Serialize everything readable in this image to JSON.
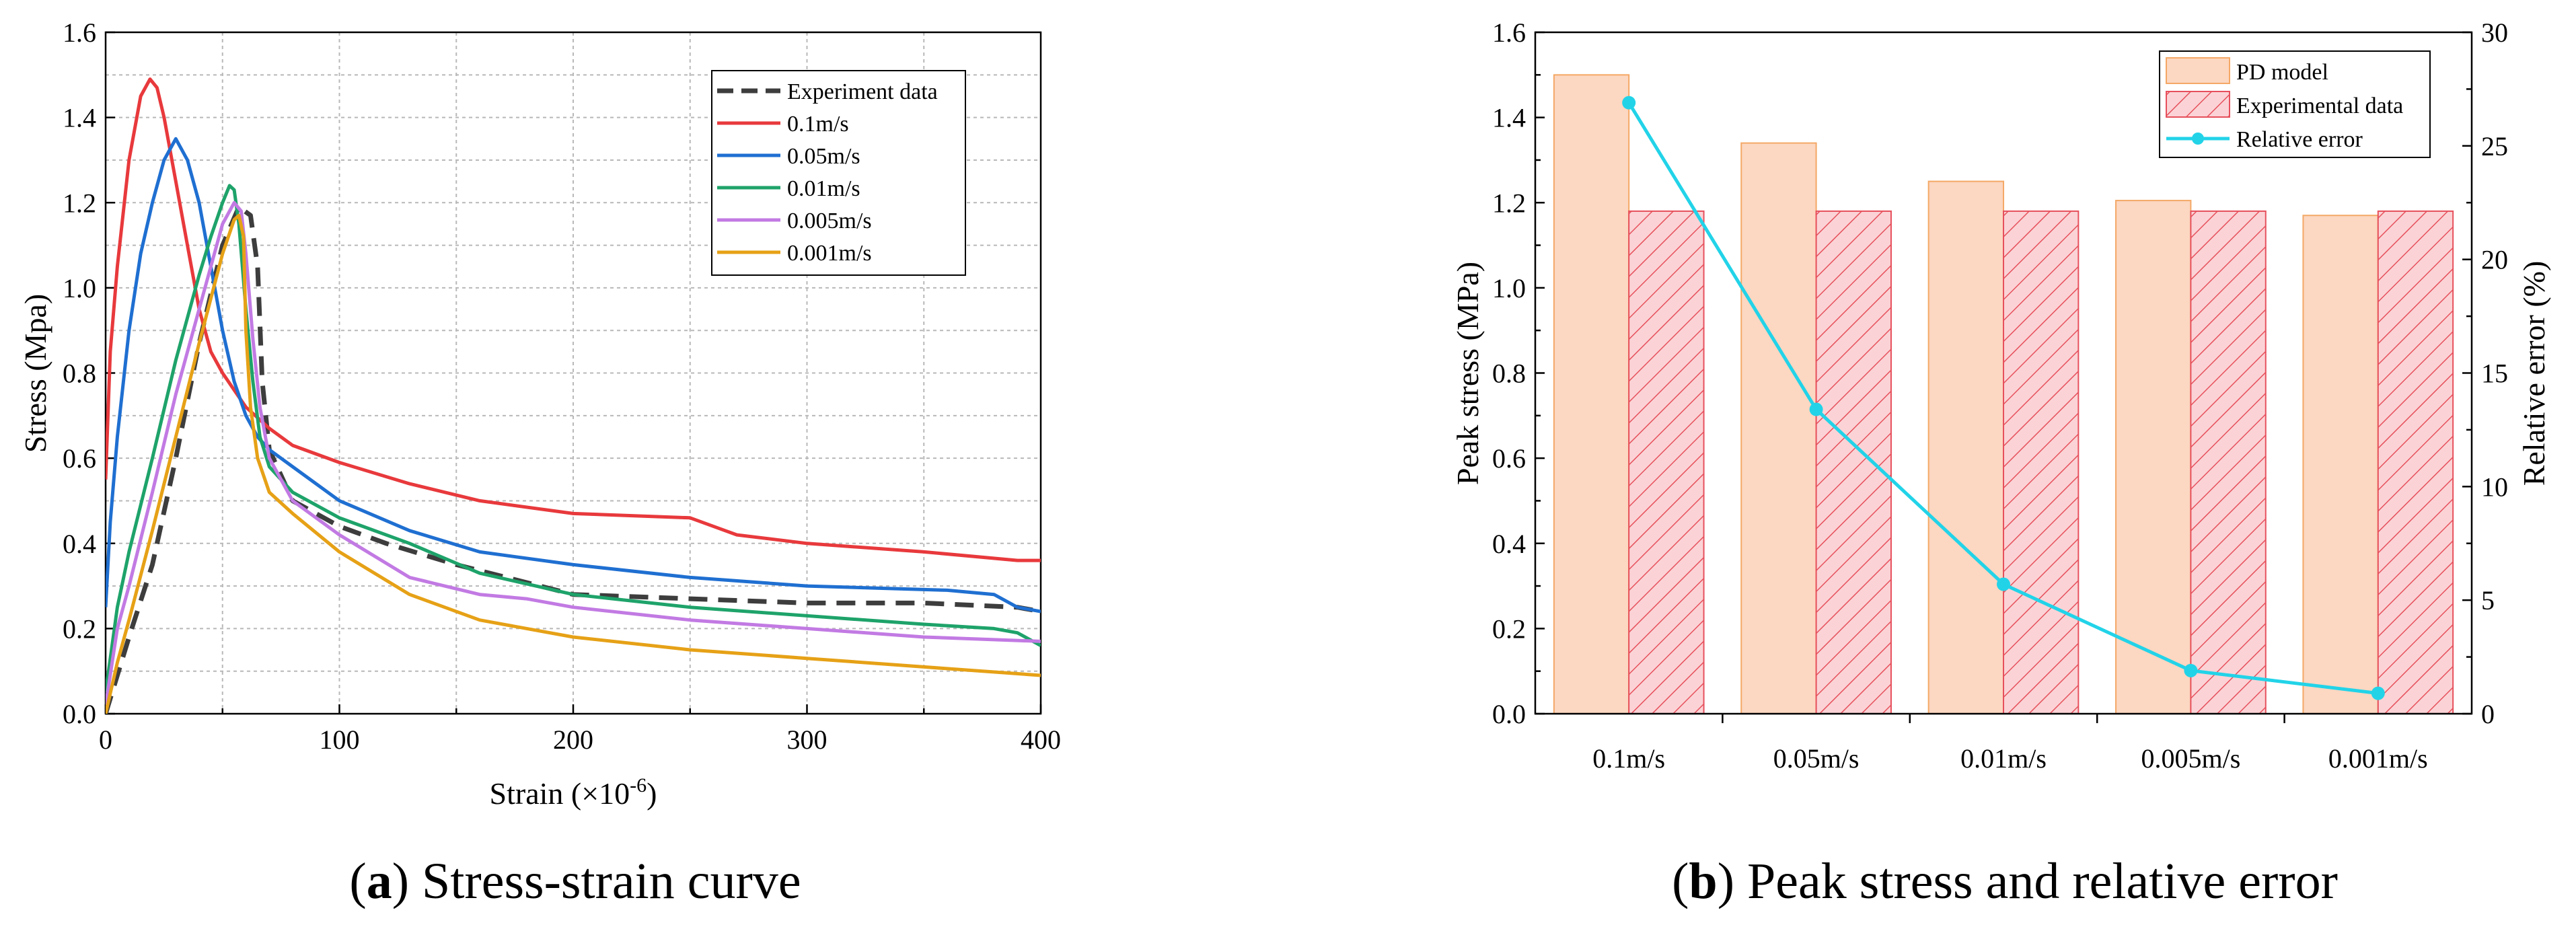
{
  "panels": {
    "a": {
      "caption_letter": "a",
      "caption_text": "Stress-strain curve"
    },
    "b": {
      "caption_letter": "b",
      "caption_text": "Peak stress and relative error"
    }
  },
  "chart_data": [
    {
      "id": "a",
      "type": "line",
      "title": "",
      "xlabel": "Strain (×10",
      "xlabel_sup": "-6",
      "xlabel_end": ")",
      "ylabel": "Stress (Mpa)",
      "xlim": [
        0,
        400
      ],
      "ylim": [
        0,
        1.6
      ],
      "xticks": [
        0,
        100,
        200,
        300,
        400
      ],
      "yticks": [
        0.0,
        0.2,
        0.4,
        0.6,
        0.8,
        1.0,
        1.2,
        1.4,
        1.6
      ],
      "grid": true,
      "legend_position": "top-right",
      "series": [
        {
          "name": "Experiment data",
          "color": "#3d3d3d",
          "dashed": true,
          "x": [
            0,
            10,
            20,
            30,
            40,
            50,
            57,
            62,
            65,
            67,
            70,
            80,
            100,
            120,
            150,
            200,
            250,
            300,
            350,
            390,
            400
          ],
          "y": [
            0,
            0.18,
            0.35,
            0.6,
            0.87,
            1.1,
            1.19,
            1.17,
            1.05,
            0.78,
            0.62,
            0.5,
            0.44,
            0.4,
            0.35,
            0.28,
            0.27,
            0.26,
            0.26,
            0.25,
            0.24
          ]
        },
        {
          "name": "0.1m/s",
          "color": "#e8393c",
          "dashed": false,
          "x": [
            0,
            2,
            5,
            10,
            15,
            19,
            22,
            25,
            30,
            35,
            40,
            45,
            50,
            55,
            60,
            70,
            80,
            100,
            130,
            160,
            200,
            250,
            265,
            270,
            300,
            350,
            390,
            400
          ],
          "y": [
            0.55,
            0.85,
            1.05,
            1.3,
            1.45,
            1.49,
            1.47,
            1.4,
            1.25,
            1.1,
            0.95,
            0.85,
            0.8,
            0.76,
            0.72,
            0.67,
            0.63,
            0.59,
            0.54,
            0.5,
            0.47,
            0.46,
            0.43,
            0.42,
            0.4,
            0.38,
            0.36,
            0.36
          ]
        },
        {
          "name": "0.05m/s",
          "color": "#1f6fd1",
          "dashed": false,
          "x": [
            0,
            2,
            5,
            10,
            15,
            20,
            25,
            30,
            35,
            40,
            45,
            50,
            55,
            60,
            65,
            70,
            80,
            100,
            130,
            160,
            200,
            250,
            300,
            360,
            380,
            390,
            400
          ],
          "y": [
            0.25,
            0.45,
            0.65,
            0.9,
            1.08,
            1.2,
            1.3,
            1.35,
            1.3,
            1.2,
            1.05,
            0.9,
            0.78,
            0.7,
            0.65,
            0.62,
            0.58,
            0.5,
            0.43,
            0.38,
            0.35,
            0.32,
            0.3,
            0.29,
            0.28,
            0.25,
            0.24
          ]
        },
        {
          "name": "0.01m/s",
          "color": "#1ea36a",
          "dashed": false,
          "x": [
            0,
            5,
            10,
            20,
            30,
            40,
            45,
            50,
            53,
            55,
            57,
            60,
            63,
            66,
            70,
            80,
            100,
            130,
            160,
            200,
            250,
            300,
            350,
            380,
            390,
            400
          ],
          "y": [
            0.05,
            0.25,
            0.38,
            0.6,
            0.83,
            1.03,
            1.12,
            1.2,
            1.24,
            1.23,
            1.15,
            0.95,
            0.78,
            0.65,
            0.58,
            0.52,
            0.46,
            0.4,
            0.33,
            0.28,
            0.25,
            0.23,
            0.21,
            0.2,
            0.19,
            0.16
          ]
        },
        {
          "name": "0.005m/s",
          "color": "#c27ae3",
          "dashed": false,
          "x": [
            0,
            5,
            10,
            20,
            30,
            40,
            45,
            50,
            55,
            58,
            60,
            63,
            66,
            70,
            80,
            100,
            130,
            160,
            180,
            200,
            250,
            300,
            350,
            400
          ],
          "y": [
            0.02,
            0.2,
            0.3,
            0.52,
            0.75,
            0.95,
            1.05,
            1.15,
            1.2,
            1.18,
            1.08,
            0.88,
            0.72,
            0.6,
            0.5,
            0.42,
            0.32,
            0.28,
            0.27,
            0.25,
            0.22,
            0.2,
            0.18,
            0.17
          ]
        },
        {
          "name": "0.001m/s",
          "color": "#e6a116",
          "dashed": false,
          "x": [
            0,
            5,
            10,
            20,
            30,
            40,
            50,
            55,
            57,
            59,
            60,
            62,
            65,
            70,
            80,
            100,
            130,
            160,
            200,
            250,
            300,
            350,
            400
          ],
          "y": [
            0.0,
            0.12,
            0.22,
            0.43,
            0.65,
            0.87,
            1.08,
            1.16,
            1.17,
            1.12,
            0.9,
            0.72,
            0.6,
            0.52,
            0.47,
            0.38,
            0.28,
            0.22,
            0.18,
            0.15,
            0.13,
            0.11,
            0.09
          ]
        }
      ]
    },
    {
      "id": "b",
      "type": "bar",
      "title": "",
      "xlabel": "",
      "ylabel": "Peak stress (MPa)",
      "ylabel_right": "Relative error (%)",
      "categories": [
        "0.1m/s",
        "0.05m/s",
        "0.01m/s",
        "0.005m/s",
        "0.001m/s"
      ],
      "ylim": [
        0,
        1.6
      ],
      "ylim_right": [
        0,
        30
      ],
      "yticks": [
        0.0,
        0.2,
        0.4,
        0.6,
        0.8,
        1.0,
        1.2,
        1.4,
        1.6
      ],
      "yticks_right": [
        0,
        5,
        10,
        15,
        20,
        25,
        30
      ],
      "grid": false,
      "legend_position": "top-right",
      "series": [
        {
          "name": "PD model",
          "axis": "left",
          "style": "bar",
          "color": "#fcd7c1",
          "edge": "#f4a866",
          "values": [
            1.5,
            1.34,
            1.25,
            1.205,
            1.17
          ]
        },
        {
          "name": "Experimental data",
          "axis": "left",
          "style": "hatched-bar",
          "color": "#fbd3d6",
          "edge": "#e6505c",
          "values": [
            1.18,
            1.18,
            1.18,
            1.18,
            1.18
          ]
        },
        {
          "name": "Relative error",
          "axis": "right",
          "style": "line",
          "color": "#22d3e8",
          "values": [
            26.9,
            13.4,
            5.7,
            1.9,
            0.9
          ]
        }
      ]
    }
  ]
}
